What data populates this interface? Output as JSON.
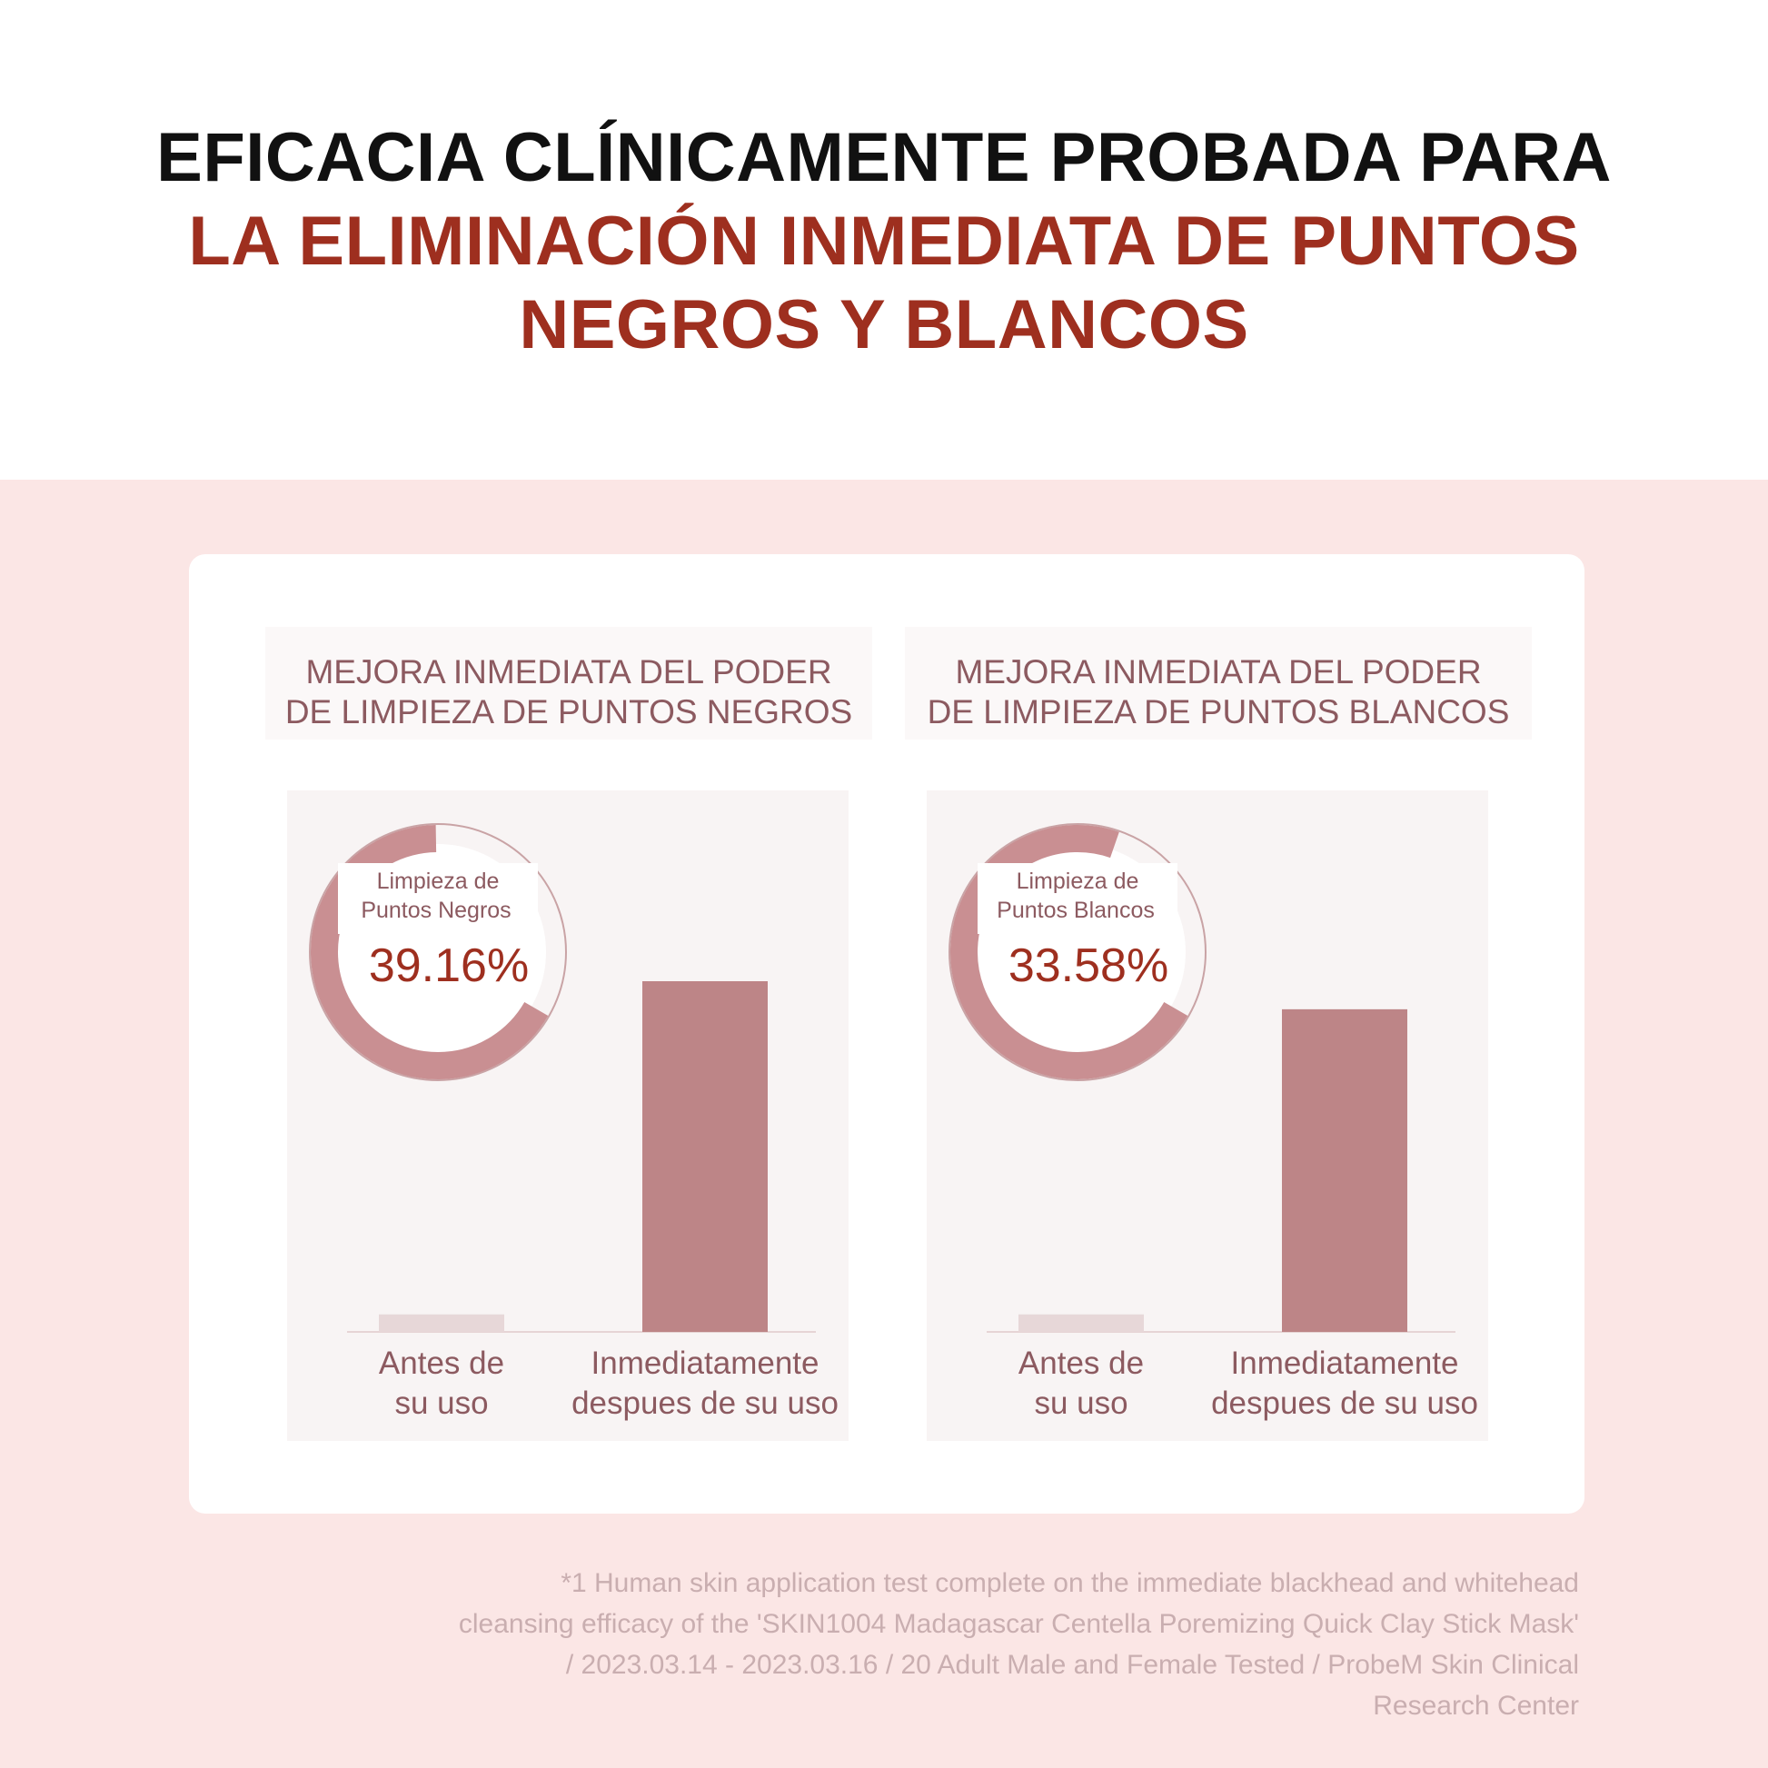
{
  "headline": {
    "line1": "EFICACIA CLÍNICAMENTE PROBADA PARA",
    "line2": "LA ELIMINACIÓN INMEDIATA DE PUNTOS",
    "line3": "NEGROS Y BLANCOS"
  },
  "colors": {
    "headline_dark": "#111111",
    "headline_accent": "#9e2f1f",
    "bar_after": "#bd8587",
    "bar_before": "#e7d7d8",
    "ring_track": "#c98f92",
    "label_text": "#8c5a60",
    "band": "#fbe6e5"
  },
  "chart_data": [
    {
      "type": "bar",
      "title_line1": "MEJORA INMEDIATA DEL PODER",
      "title_line2": "DE LIMPIEZA DE PUNTOS NEGROS",
      "categories": [
        {
          "line1": "Antes de",
          "line2": "su uso"
        },
        {
          "line1": "Inmediatamente",
          "line2": "despues de su uso"
        }
      ],
      "values": [
        5,
        100
      ],
      "ring": {
        "label_line1": "Limpieza de",
        "label_line2": "Puntos Negros",
        "value_text": "39.16%",
        "fraction": 0.3916
      },
      "xlabel": "",
      "ylabel": ""
    },
    {
      "type": "bar",
      "title_line1": "MEJORA INMEDIATA DEL PODER",
      "title_line2": "DE LIMPIEZA DE PUNTOS BLANCOS",
      "categories": [
        {
          "line1": "Antes de",
          "line2": "su uso"
        },
        {
          "line1": "Inmediatamente",
          "line2": "despues de su uso"
        }
      ],
      "values": [
        5,
        92
      ],
      "ring": {
        "label_line1": "Limpieza de",
        "label_line2": "Puntos Blancos",
        "value_text": "33.58%",
        "fraction": 0.3358
      },
      "xlabel": "",
      "ylabel": ""
    }
  ],
  "footnote": {
    "line1": "*1 Human skin application test complete on the immediate blackhead and whitehead",
    "line2": "cleansing efficacy of the 'SKIN1004 Madagascar Centella Poremizing Quick Clay Stick Mask'",
    "line3": "/ 2023.03.14 - 2023.03.16 / 20 Adult Male and Female Tested / ProbeM Skin Clinical",
    "line4": "Research Center"
  }
}
